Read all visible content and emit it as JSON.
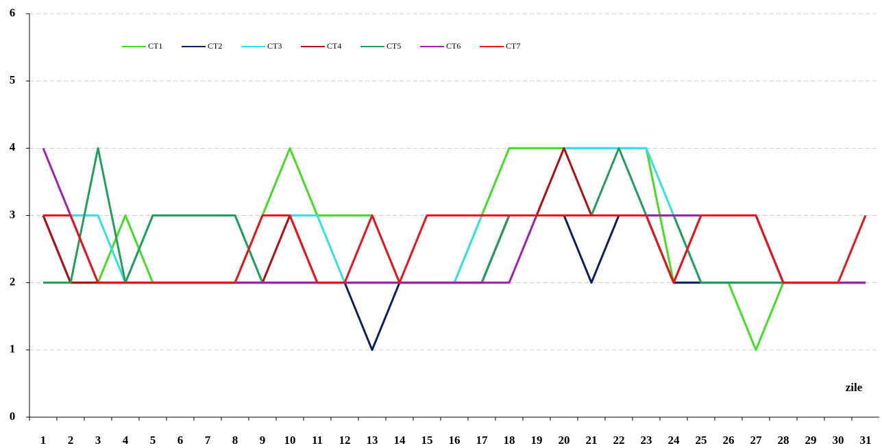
{
  "chart_data": {
    "type": "line",
    "x_label": "zile",
    "categories": [
      1,
      2,
      3,
      4,
      5,
      6,
      7,
      8,
      9,
      10,
      11,
      12,
      13,
      14,
      15,
      16,
      17,
      18,
      19,
      20,
      21,
      22,
      23,
      24,
      25,
      26,
      27,
      28,
      29,
      30,
      31
    ],
    "ylim": [
      0,
      6
    ],
    "yticks": [
      0,
      1,
      2,
      3,
      4,
      5,
      6
    ],
    "grid": true,
    "legend": "top-left",
    "series": [
      {
        "name": "CT1",
        "color": "#44dd22",
        "values": [
          2,
          2,
          2,
          3,
          2,
          2,
          2,
          2,
          3,
          4,
          3,
          3,
          3,
          2,
          2,
          2,
          3,
          4,
          4,
          4,
          4,
          4,
          4,
          2,
          2,
          2,
          1,
          2,
          2,
          2,
          2
        ]
      },
      {
        "name": "CT2",
        "color": "#0a2060",
        "values": [
          3,
          2,
          2,
          2,
          2,
          2,
          2,
          2,
          2,
          2,
          2,
          2,
          1,
          2,
          2,
          2,
          2,
          3,
          3,
          3,
          2,
          3,
          3,
          2,
          2,
          2,
          2,
          2,
          2,
          2,
          2
        ]
      },
      {
        "name": "CT3",
        "color": "#33e0e8",
        "values": [
          3,
          3,
          3,
          2,
          3,
          3,
          3,
          3,
          2,
          3,
          3,
          2,
          2,
          2,
          2,
          2,
          3,
          3,
          3,
          4,
          4,
          4,
          4,
          3,
          2,
          2,
          2,
          2,
          2,
          2,
          2
        ]
      },
      {
        "name": "CT4",
        "color": "#b01010",
        "values": [
          3,
          2,
          2,
          2,
          2,
          2,
          2,
          2,
          2,
          3,
          2,
          2,
          2,
          2,
          2,
          2,
          2,
          3,
          3,
          4,
          3,
          3,
          3,
          2,
          3,
          3,
          3,
          2,
          2,
          2,
          2
        ]
      },
      {
        "name": "CT5",
        "color": "#1f9f5a",
        "values": [
          2,
          2,
          4,
          2,
          3,
          3,
          3,
          3,
          2,
          2,
          2,
          2,
          2,
          2,
          2,
          2,
          2,
          3,
          3,
          3,
          3,
          4,
          3,
          3,
          2,
          2,
          2,
          2,
          2,
          2,
          2
        ]
      },
      {
        "name": "CT6",
        "color": "#a020b0",
        "values": [
          4,
          3,
          2,
          2,
          2,
          2,
          2,
          2,
          2,
          2,
          2,
          2,
          2,
          2,
          2,
          2,
          2,
          2,
          3,
          3,
          3,
          3,
          3,
          3,
          3,
          3,
          3,
          2,
          2,
          2,
          2
        ]
      },
      {
        "name": "CT7",
        "color": "#e8141c",
        "values": [
          3,
          3,
          2,
          2,
          2,
          2,
          2,
          2,
          3,
          3,
          2,
          2,
          3,
          2,
          3,
          3,
          3,
          3,
          3,
          3,
          3,
          3,
          3,
          2,
          3,
          3,
          3,
          2,
          2,
          2,
          3
        ]
      }
    ]
  }
}
